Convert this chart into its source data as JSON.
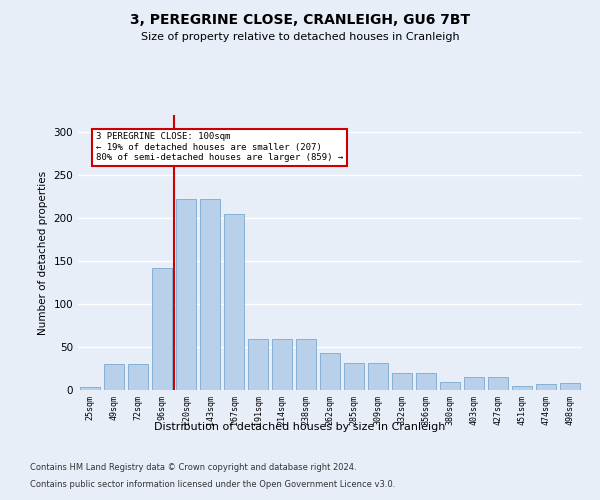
{
  "title": "3, PEREGRINE CLOSE, CRANLEIGH, GU6 7BT",
  "subtitle": "Size of property relative to detached houses in Cranleigh",
  "xlabel": "Distribution of detached houses by size in Cranleigh",
  "ylabel": "Number of detached properties",
  "categories": [
    "25sqm",
    "49sqm",
    "72sqm",
    "96sqm",
    "120sqm",
    "143sqm",
    "167sqm",
    "191sqm",
    "214sqm",
    "238sqm",
    "262sqm",
    "285sqm",
    "309sqm",
    "332sqm",
    "356sqm",
    "380sqm",
    "403sqm",
    "427sqm",
    "451sqm",
    "474sqm",
    "498sqm"
  ],
  "values": [
    4,
    30,
    30,
    142,
    222,
    222,
    205,
    59,
    59,
    59,
    43,
    32,
    32,
    20,
    20,
    9,
    15,
    15,
    5,
    7,
    8
  ],
  "bar_color": "#b8d0ea",
  "bar_edge_color": "#7aaad0",
  "vline_color": "#cc0000",
  "annotation_text": "3 PEREGRINE CLOSE: 100sqm\n← 19% of detached houses are smaller (207)\n80% of semi-detached houses are larger (859) →",
  "annotation_box_facecolor": "#ffffff",
  "annotation_box_edgecolor": "#cc0000",
  "ylim": [
    0,
    320
  ],
  "yticks": [
    0,
    50,
    100,
    150,
    200,
    250,
    300
  ],
  "footer_line1": "Contains HM Land Registry data © Crown copyright and database right 2024.",
  "footer_line2": "Contains public sector information licensed under the Open Government Licence v3.0.",
  "background_color": "#e8eef8",
  "grid_color": "#ffffff"
}
